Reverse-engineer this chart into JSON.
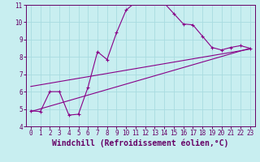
{
  "title": "",
  "xlabel": "Windchill (Refroidissement éolien,°C)",
  "ylabel": "",
  "xlim": [
    -0.5,
    23.5
  ],
  "ylim": [
    4,
    11
  ],
  "yticks": [
    4,
    5,
    6,
    7,
    8,
    9,
    10,
    11
  ],
  "xticks": [
    0,
    1,
    2,
    3,
    4,
    5,
    6,
    7,
    8,
    9,
    10,
    11,
    12,
    13,
    14,
    15,
    16,
    17,
    18,
    19,
    20,
    21,
    22,
    23
  ],
  "background_color": "#c8eef0",
  "grid_color": "#a8dce0",
  "line_color": "#880088",
  "line1_x": [
    0,
    1,
    2,
    3,
    4,
    5,
    6,
    7,
    8,
    9,
    10,
    11,
    12,
    13,
    14,
    15,
    16,
    17,
    18,
    19,
    20,
    21,
    22,
    23
  ],
  "line1_y": [
    4.9,
    4.85,
    6.0,
    6.0,
    4.65,
    4.7,
    6.25,
    8.3,
    7.85,
    9.4,
    10.7,
    11.15,
    11.1,
    11.1,
    11.1,
    10.5,
    9.9,
    9.85,
    9.2,
    8.55,
    8.4,
    8.55,
    8.65,
    8.5
  ],
  "line2_x": [
    0,
    23
  ],
  "line2_y": [
    4.85,
    8.5
  ],
  "line3_x": [
    0,
    23
  ],
  "line3_y": [
    6.3,
    8.45
  ],
  "font_color": "#660066",
  "tick_fontsize": 5.5,
  "xlabel_fontsize": 7.0
}
